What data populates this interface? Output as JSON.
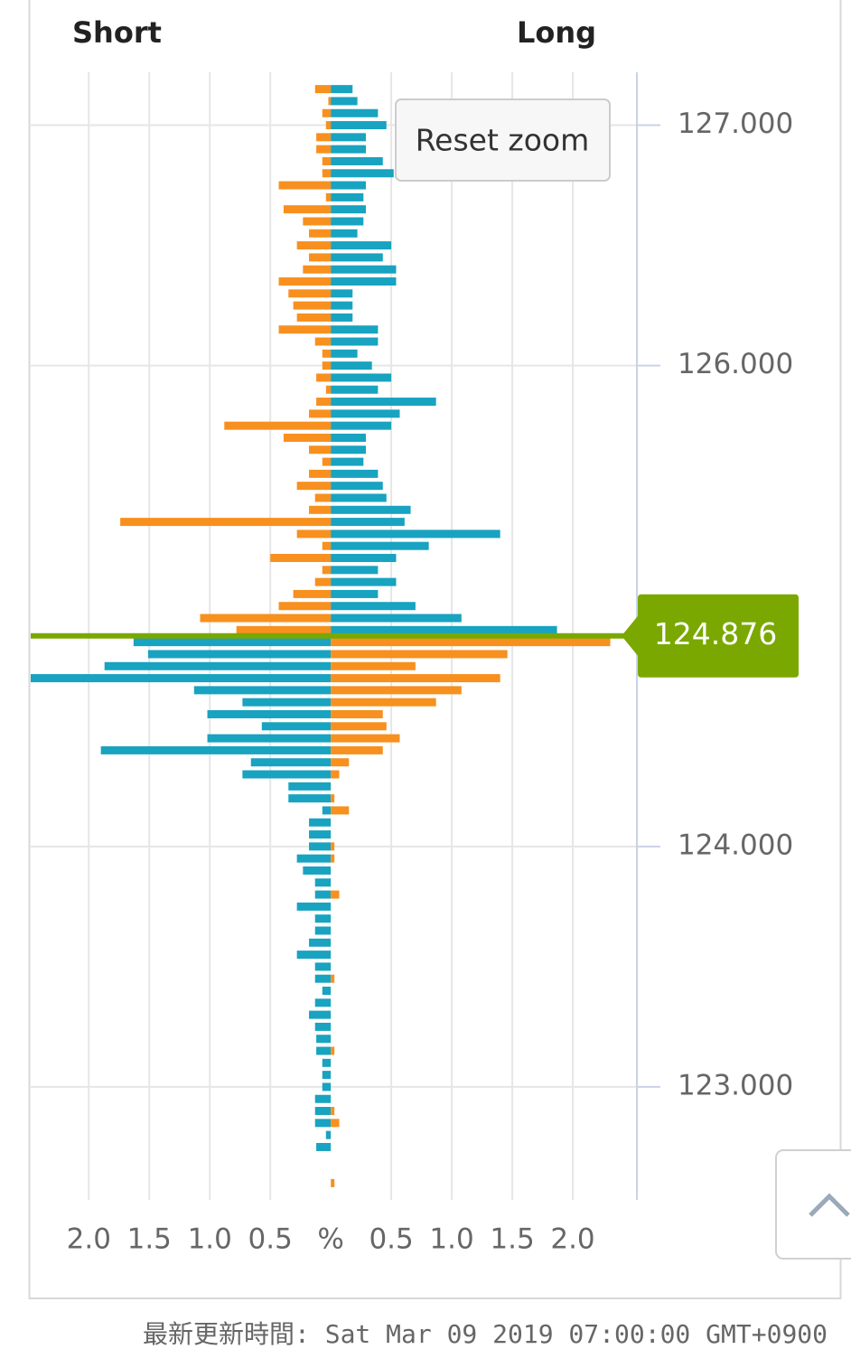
{
  "chart_data": {
    "type": "butterfly",
    "prices": [
      127.15,
      127.1,
      127.05,
      127.0,
      126.95,
      126.9,
      126.85,
      126.8,
      126.75,
      126.7,
      126.65,
      126.6,
      126.55,
      126.5,
      126.45,
      126.4,
      126.35,
      126.3,
      126.25,
      126.2,
      126.15,
      126.1,
      126.05,
      126.0,
      125.95,
      125.9,
      125.85,
      125.8,
      125.75,
      125.7,
      125.65,
      125.6,
      125.55,
      125.5,
      125.45,
      125.4,
      125.35,
      125.3,
      125.25,
      125.2,
      125.15,
      125.1,
      125.05,
      125.0,
      124.95,
      124.9,
      124.85,
      124.8,
      124.75,
      124.7,
      124.65,
      124.6,
      124.55,
      124.5,
      124.45,
      124.4,
      124.35,
      124.3,
      124.25,
      124.2,
      124.15,
      124.1,
      124.05,
      124.0,
      123.95,
      123.9,
      123.85,
      123.8,
      123.75,
      123.7,
      123.65,
      123.6,
      123.55,
      123.5,
      123.45,
      123.4,
      123.35,
      123.3,
      123.25,
      123.2,
      123.15,
      123.1,
      123.05,
      123.0,
      122.95,
      122.9,
      122.85,
      122.8,
      122.75,
      122.7,
      122.65,
      122.6
    ],
    "series": [
      {
        "name": "Short",
        "color": "#f7901e",
        "color_below": "#18a3c0",
        "values": [
          0.13,
          0.02,
          0.07,
          0.04,
          0.12,
          0.12,
          0.07,
          0.07,
          0.43,
          0.04,
          0.39,
          0.23,
          0.18,
          0.28,
          0.18,
          0.23,
          0.43,
          0.35,
          0.31,
          0.28,
          0.43,
          0.13,
          0.07,
          0.07,
          0.12,
          0.04,
          0.12,
          0.18,
          0.88,
          0.39,
          0.18,
          0.07,
          0.18,
          0.28,
          0.13,
          0.18,
          1.74,
          0.28,
          0.07,
          0.5,
          0.07,
          0.13,
          0.31,
          0.43,
          1.08,
          0.78,
          1.63,
          1.51,
          1.87,
          2.48,
          1.13,
          0.73,
          1.02,
          0.57,
          1.02,
          1.9,
          0.66,
          0.73,
          0.35,
          0.35,
          0.07,
          0.18,
          0.18,
          0.18,
          0.28,
          0.23,
          0.13,
          0.13,
          0.28,
          0.13,
          0.13,
          0.18,
          0.28,
          0.13,
          0.13,
          0.07,
          0.13,
          0.18,
          0.13,
          0.12,
          0.12,
          0.07,
          0.07,
          0.07,
          0.13,
          0.13,
          0.13,
          0.04,
          0.12,
          0,
          0,
          0
        ]
      },
      {
        "name": "Long",
        "color": "#18a3c0",
        "color_below": "#f7901e",
        "values": [
          0.18,
          0.22,
          0.39,
          0.46,
          0.29,
          0.29,
          0.43,
          0.52,
          0.29,
          0.27,
          0.29,
          0.27,
          0.22,
          0.5,
          0.43,
          0.54,
          0.54,
          0.18,
          0.18,
          0.18,
          0.39,
          0.39,
          0.22,
          0.34,
          0.5,
          0.39,
          0.87,
          0.57,
          0.5,
          0.29,
          0.29,
          0.27,
          0.39,
          0.43,
          0.46,
          0.66,
          0.61,
          1.4,
          0.81,
          0.54,
          0.39,
          0.54,
          0.39,
          0.7,
          1.08,
          1.87,
          2.31,
          1.46,
          0.7,
          1.4,
          1.08,
          0.87,
          0.43,
          0.46,
          0.57,
          0.43,
          0.15,
          0.07,
          0,
          0.03,
          0.15,
          0,
          0,
          0.03,
          0.03,
          0,
          0,
          0.07,
          0,
          0,
          0,
          0,
          0,
          0,
          0.03,
          0,
          0,
          0,
          0,
          0,
          0.03,
          0,
          0,
          0,
          0,
          0.03,
          0.07,
          0,
          0,
          0,
          0,
          0.03
        ]
      }
    ],
    "current_price": 124.876,
    "current_price_color": "#7aa800",
    "ylim": [
      122.53,
      127.22
    ],
    "yticks": [
      {
        "value": 127,
        "label": "127.000"
      },
      {
        "value": 126,
        "label": "126.000"
      },
      {
        "value": 124,
        "label": "124.000"
      },
      {
        "value": 123,
        "label": "123.000"
      }
    ],
    "xlim": [
      -2.48,
      2.53
    ],
    "xticks": [
      {
        "value": -2,
        "label": "2.0"
      },
      {
        "value": -1.5,
        "label": "1.5"
      },
      {
        "value": -1,
        "label": "1.0"
      },
      {
        "value": -0.5,
        "label": "0.5"
      },
      {
        "value": 0,
        "label": "%"
      },
      {
        "value": 0.5,
        "label": "0.5"
      },
      {
        "value": 1,
        "label": "1.0"
      },
      {
        "value": 1.5,
        "label": "1.5"
      },
      {
        "value": 2,
        "label": "2.0"
      }
    ],
    "grid": true,
    "reset_button": "Reset zoom",
    "footer": "最新更新時間: Sat Mar 09 2019 07:00:00 GMT+0900"
  }
}
